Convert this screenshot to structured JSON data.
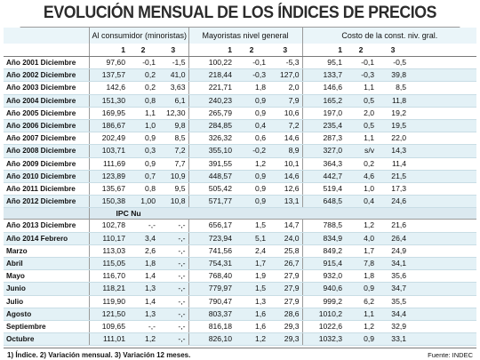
{
  "title": "EVOLUCIÓN MENSUAL DE LOS ÍNDICES DE PRECIOS",
  "groups": [
    "Al consumidor (minoristas)",
    "Mayoristas nivel general",
    "Costo de la const. niv. gral."
  ],
  "subcols": [
    "1",
    "2",
    "3"
  ],
  "rows": [
    {
      "label": "Año 2001 Diciembre",
      "v": [
        "97,60",
        "-0,1",
        "-1,5",
        "100,22",
        "-0,1",
        "-5,3",
        "95,1",
        "-0,1",
        "-0,5"
      ]
    },
    {
      "label": "Año 2002 Diciembre",
      "v": [
        "137,57",
        "0,2",
        "41,0",
        "218,44",
        "-0,3",
        "127,0",
        "133,7",
        "-0,3",
        "39,8"
      ]
    },
    {
      "label": "Año 2003 Diciembre",
      "v": [
        "142,6",
        "0,2",
        "3,63",
        "221,71",
        "1,8",
        "2,0",
        "146,6",
        "1,1",
        "8,5"
      ]
    },
    {
      "label": "Año 2004 Diciembre",
      "v": [
        "151,30",
        "0,8",
        "6,1",
        "240,23",
        "0,9",
        "7,9",
        "165,2",
        "0,5",
        "11,8"
      ]
    },
    {
      "label": "Año 2005 Diciembre",
      "v": [
        "169,95",
        "1,1",
        "12,30",
        "265,79",
        "0,9",
        "10,6",
        "197,0",
        "2,0",
        "19,2"
      ]
    },
    {
      "label": "Año 2006 Diciembre",
      "v": [
        "186,67",
        "1,0",
        "9,8",
        "284,85",
        "0,4",
        "7,2",
        "235,4",
        "0,5",
        "19,5"
      ]
    },
    {
      "label": "Año 2007 Diciembre",
      "v": [
        "202,49",
        "0,9",
        "8,5",
        "326,32",
        "0,6",
        "14,6",
        "287,3",
        "1,1",
        "22,0"
      ]
    },
    {
      "label": "Año 2008 Diciembre",
      "v": [
        "103,71",
        "0,3",
        "7,2",
        "355,10",
        "-0,2",
        "8,9",
        "327,0",
        "s/v",
        "14,3"
      ]
    },
    {
      "label": "Año 2009 Diciembre",
      "v": [
        "111,69",
        "0,9",
        "7,7",
        "391,55",
        "1,2",
        "10,1",
        "364,3",
        "0,2",
        "11,4"
      ]
    },
    {
      "label": "Año 2010 Diciembre",
      "v": [
        "123,89",
        "0,7",
        "10,9",
        "448,57",
        "0,9",
        "14,6",
        "442,7",
        "4,6",
        "21,5"
      ]
    },
    {
      "label": "Año 2011 Diciembre",
      "v": [
        "135,67",
        "0,8",
        "9,5",
        "505,42",
        "0,9",
        "12,6",
        "519,4",
        "1,0",
        "17,3"
      ]
    },
    {
      "label": "Año 2012 Diciembre",
      "v": [
        "150,38",
        "1,00",
        "10,8",
        "571,77",
        "0,9",
        "13,1",
        "648,5",
        "0,4",
        "24,6"
      ]
    }
  ],
  "ipc_label": "IPC Nu",
  "rows2": [
    {
      "label": "Año 2013 Diciembre",
      "v": [
        "102,78",
        "-,-",
        "-,-",
        "656,17",
        "1,5",
        "14,7",
        "788,5",
        "1,2",
        "21,6"
      ]
    },
    {
      "label": "Año 2014 Febrero",
      "v": [
        "110,17",
        "3,4",
        "-,-",
        "723,94",
        "5,1",
        "24,0",
        "834,9",
        "4,0",
        "26,4"
      ]
    },
    {
      "label": "Marzo",
      "v": [
        "113,03",
        "2,6",
        "-,-",
        "741,56",
        "2,4",
        "25,8",
        "849,2",
        "1,7",
        "24,9"
      ]
    },
    {
      "label": "Abril",
      "v": [
        "115,05",
        "1,8",
        "-,-",
        "754,31",
        "1,7",
        "26,7",
        "915,4",
        "7,8",
        "34,1"
      ]
    },
    {
      "label": "Mayo",
      "v": [
        "116,70",
        "1,4",
        "-,-",
        "768,40",
        "1,9",
        "27,9",
        "932,0",
        "1,8",
        "35,6"
      ]
    },
    {
      "label": "Junio",
      "v": [
        "118,21",
        "1,3",
        "-,-",
        "779,97",
        "1,5",
        "27,9",
        "940,6",
        "0,9",
        "34,7"
      ]
    },
    {
      "label": "Julio",
      "v": [
        "119,90",
        "1,4",
        "-,-",
        "790,47",
        "1,3",
        "27,9",
        "999,2",
        "6,2",
        "35,5"
      ]
    },
    {
      "label": "Agosto",
      "v": [
        "121,50",
        "1,3",
        "-,-",
        "803,37",
        "1,6",
        "28,6",
        "1010,2",
        "1,1",
        "34,4"
      ]
    },
    {
      "label": "Septiembre",
      "v": [
        "109,65",
        "-,-",
        "-,-",
        "816,18",
        "1,6",
        "29,3",
        "1022,6",
        "1,2",
        "32,9"
      ]
    },
    {
      "label": "Octubre",
      "v": [
        "111,01",
        "1,2",
        "-,-",
        "826,10",
        "1,2",
        "29,3",
        "1032,3",
        "0,9",
        "33,1"
      ]
    }
  ],
  "footnote": "1) Índice.  2) Variación mensual.  3) Variación 12 meses.",
  "source": "Fuente: INDEC"
}
